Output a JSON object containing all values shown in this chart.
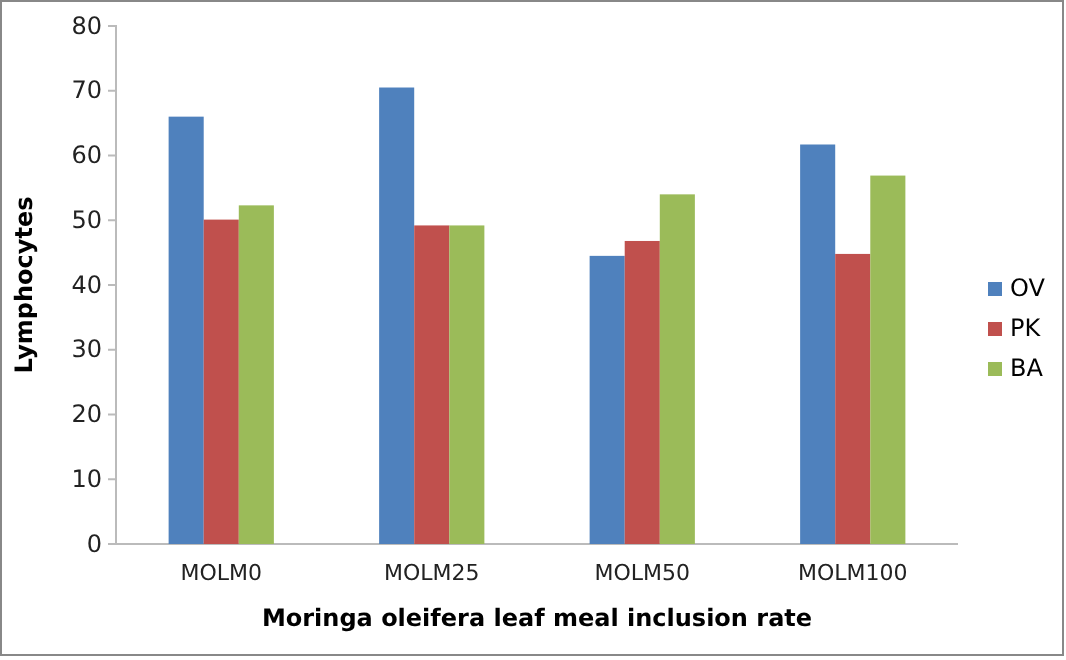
{
  "chart_data": {
    "type": "bar",
    "xlabel": "Moringa oleifera leaf meal inclusion rate",
    "ylabel": "Lymphocytes",
    "categories": [
      "MOLM0",
      "MOLM25",
      "MOLM50",
      "MOLM100"
    ],
    "series": [
      {
        "name": "OV",
        "color": "#4f81bd",
        "values": [
          66,
          70.5,
          44.5,
          61.7
        ]
      },
      {
        "name": "PK",
        "color": "#c0504d",
        "values": [
          50.1,
          49.2,
          46.8,
          44.8
        ]
      },
      {
        "name": "BA",
        "color": "#9bbb59",
        "values": [
          52.3,
          49.2,
          54,
          56.9
        ]
      }
    ],
    "ylim": [
      0,
      80
    ],
    "yticks": [
      0,
      10,
      20,
      30,
      40,
      50,
      60,
      70,
      80
    ],
    "grid": false,
    "legend": "right"
  }
}
